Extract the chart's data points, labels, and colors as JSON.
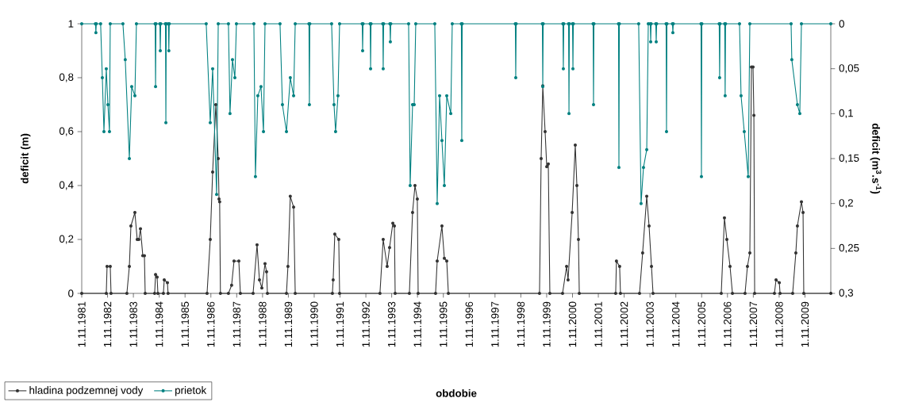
{
  "chart_data": {
    "type": "line",
    "xlabel": "obdobie",
    "ylabel": "deficit (m)",
    "y2label": "deficit (m$^{3}$.s$^{-1}$)",
    "xlim": [
      "1981-11-01",
      "2010-11-01"
    ],
    "xticks": [
      {
        "value": "1981-11-01",
        "label": "1.11.1981"
      },
      {
        "value": "1982-11-01",
        "label": "1.11.1982"
      },
      {
        "value": "1983-11-01",
        "label": "1.11.1983"
      },
      {
        "value": "1984-11-01",
        "label": "1.11.1984"
      },
      {
        "value": "1985-11-01",
        "label": "1.11.1985"
      },
      {
        "value": "1986-11-01",
        "label": "1.11.1986"
      },
      {
        "value": "1987-11-01",
        "label": "1.11.1987"
      },
      {
        "value": "1988-11-01",
        "label": "1.11.1988"
      },
      {
        "value": "1989-11-01",
        "label": "1.11.1989"
      },
      {
        "value": "1990-11-01",
        "label": "1.11.1990"
      },
      {
        "value": "1991-11-01",
        "label": "1.11.1991"
      },
      {
        "value": "1992-11-01",
        "label": "1.11.1992"
      },
      {
        "value": "1993-11-01",
        "label": "1.11.1993"
      },
      {
        "value": "1994-11-01",
        "label": "1.11.1994"
      },
      {
        "value": "1995-11-01",
        "label": "1.11.1995"
      },
      {
        "value": "1996-11-01",
        "label": "1.11.1996"
      },
      {
        "value": "1997-11-01",
        "label": "1.11.1997"
      },
      {
        "value": "1998-11-01",
        "label": "1.11.1998"
      },
      {
        "value": "1999-11-01",
        "label": "1.11.1999"
      },
      {
        "value": "2000-11-01",
        "label": "1.11.2000"
      },
      {
        "value": "2001-11-01",
        "label": "1.11.2001"
      },
      {
        "value": "2002-11-01",
        "label": "1.11.2002"
      },
      {
        "value": "2003-11-01",
        "label": "1.11.2003"
      },
      {
        "value": "2004-11-01",
        "label": "1.11.2004"
      },
      {
        "value": "2005-11-01",
        "label": "1.11.2005"
      },
      {
        "value": "2006-11-01",
        "label": "1.11.2006"
      },
      {
        "value": "2007-11-01",
        "label": "1.11.2007"
      },
      {
        "value": "2008-11-01",
        "label": "1.11.2008"
      },
      {
        "value": "2009-11-01",
        "label": "1.11.2009"
      }
    ],
    "ylim": [
      0,
      1
    ],
    "yticks": [
      0,
      {
        "value": 0.2,
        "label": "0,2"
      },
      {
        "value": 0.4,
        "label": "0,4"
      },
      {
        "value": 0.6,
        "label": "0,6"
      },
      {
        "value": 0.8,
        "label": "0,8"
      },
      1
    ],
    "y2lim": [
      0.3,
      0
    ],
    "y2ticks": [
      0,
      {
        "value": 0.05,
        "label": "0,05"
      },
      {
        "value": 0.1,
        "label": "0,1"
      },
      {
        "value": 0.15,
        "label": "0,15"
      },
      {
        "value": 0.2,
        "label": "0,2"
      },
      {
        "value": 0.25,
        "label": "0,25"
      },
      {
        "value": 0.3,
        "label": "0,3"
      }
    ],
    "legend": "bottom left",
    "marker": "circle",
    "line_style": "solid",
    "series": [
      {
        "name": "hladina podzemnej vody",
        "color": "#333333",
        "x": [
          "1981-11-01",
          "1982-10-14",
          "1982-10-25",
          "1982-12-09",
          "1982-12-20",
          "1983-08-01",
          "1983-09-05",
          "1983-09-27",
          "1983-11-22",
          "1983-12-25",
          "1984-01-17",
          "1984-02-09",
          "1984-03-13",
          "1984-04-05",
          "1984-04-16",
          "1984-08-28",
          "1984-09-10",
          "1984-10-02",
          "1984-10-13",
          "1984-12-30",
          "1985-01-11",
          "1985-02-25",
          "1985-03-06",
          "1986-09-08",
          "1986-10-23",
          "1986-11-26",
          "1987-01-10",
          "1987-02-13",
          "1987-02-24",
          "1987-03-05",
          "1987-03-16",
          "1987-07-07",
          "1987-08-21",
          "1987-09-24",
          "1987-12-01",
          "1987-12-23",
          "1988-06-20",
          "1988-08-15",
          "1988-09-18",
          "1988-10-22",
          "1988-12-06",
          "1988-12-28",
          "1989-01-09",
          "1989-10-05",
          "1989-10-26",
          "1989-11-28",
          "1990-01-14",
          "1990-02-06",
          "1991-07-16",
          "1991-07-27",
          "1991-08-19",
          "1991-10-14",
          "1991-10-26",
          "1993-05-19",
          "1993-07-04",
          "1993-08-29",
          "1993-10-02",
          "1993-11-17",
          "1993-12-09",
          "1993-12-20",
          "1994-07-09",
          "1994-08-23",
          "1994-09-26",
          "1994-10-29",
          "1994-11-10",
          "1995-07-14",
          "1995-08-06",
          "1995-10-12",
          "1995-11-15",
          "1995-12-19",
          "1996-01-11",
          "1999-07-23",
          "1999-08-15",
          "1999-09-07",
          "1999-10-10",
          "1999-11-02",
          "1999-11-24",
          "1999-12-16",
          "2000-06-13",
          "2000-08-09",
          "2000-08-30",
          "2000-10-27",
          "2000-12-10",
          "2001-01-02",
          "2001-01-24",
          "2001-02-05",
          "2002-07-04",
          "2002-07-15",
          "2002-08-29",
          "2002-09-10",
          "2003-06-06",
          "2003-07-20",
          "2003-09-16",
          "2003-10-19",
          "2003-11-22",
          "2003-12-14",
          "2006-08-05",
          "2006-09-19",
          "2006-10-23",
          "2006-12-07",
          "2007-01-10",
          "2007-07-07",
          "2007-08-10",
          "2007-09-13",
          "2007-10-06",
          "2007-10-28",
          "2007-11-09",
          "2007-11-20",
          "2008-08-26",
          "2008-09-18",
          "2008-11-03",
          "2008-11-14",
          "2009-05-11",
          "2009-06-25",
          "2009-07-17",
          "2009-09-12",
          "2009-10-05",
          "2009-10-15",
          "2010-11-01"
        ],
        "values": [
          0,
          0,
          0.1,
          0.1,
          0,
          0,
          0.1,
          0.25,
          0.3,
          0.2,
          0.2,
          0.24,
          0.14,
          0.14,
          0,
          0,
          0.07,
          0.06,
          0,
          0,
          0.05,
          0.04,
          0,
          0,
          0.2,
          0.45,
          0.7,
          0.5,
          0.35,
          0.34,
          0,
          0,
          0.03,
          0.12,
          0.12,
          0,
          0,
          0.18,
          0.05,
          0.02,
          0.11,
          0.08,
          0,
          0,
          0.1,
          0.36,
          0.32,
          0,
          0,
          0.05,
          0.22,
          0.2,
          0,
          0,
          0.2,
          0.1,
          0.17,
          0.26,
          0.25,
          0,
          0,
          0.3,
          0.4,
          0.35,
          0,
          0,
          0.12,
          0.25,
          0.13,
          0.12,
          0,
          0,
          0.5,
          0.77,
          0.6,
          0.47,
          0.48,
          0,
          0,
          0.1,
          0.05,
          0.3,
          0.55,
          0.4,
          0.2,
          0,
          0,
          0.12,
          0.1,
          0,
          0,
          0.15,
          0.36,
          0.25,
          0.1,
          0,
          0,
          0.28,
          0.2,
          0.1,
          0,
          0,
          0.1,
          0.15,
          0.84,
          0.84,
          0.66,
          0,
          0,
          0.05,
          0.04,
          0,
          0,
          0.15,
          0.25,
          0.34,
          0.3,
          0,
          0
        ]
      },
      {
        "name": "prietok",
        "color": "#008080",
        "axis": "y2",
        "x": [
          "1981-11-01",
          "1982-05-14",
          "1982-05-20",
          "1982-05-26",
          "1982-07-26",
          "1982-08-19",
          "1982-09-11",
          "1982-10-14",
          "1982-11-06",
          "1982-11-28",
          "1982-12-09",
          "1983-06-06",
          "1983-07-09",
          "1983-09-05",
          "1983-10-08",
          "1983-11-22",
          "1983-12-14",
          "1984-09-04",
          "1984-09-10",
          "1984-09-16",
          "1984-11-10",
          "1984-11-16",
          "1984-11-22",
          "1985-01-28",
          "1985-02-03",
          "1985-02-09",
          "1985-03-11",
          "1985-03-17",
          "1985-03-23",
          "1986-08-27",
          "1986-10-23",
          "1986-11-26",
          "1987-01-21",
          "1987-02-13",
          "1987-07-07",
          "1987-07-29",
          "1987-09-02",
          "1987-10-06",
          "1987-10-28",
          "1988-07-01",
          "1988-07-23",
          "1988-08-26",
          "1988-10-10",
          "1988-11-14",
          "1988-12-06",
          "1989-07-06",
          "1989-08-09",
          "1989-10-05",
          "1989-11-28",
          "1990-01-14",
          "1990-02-06",
          "1990-08-19",
          "1990-08-25",
          "1990-08-31",
          "1991-07-05",
          "1991-08-08",
          "1991-08-30",
          "1991-10-03",
          "1991-10-26",
          "1992-09-10",
          "1992-09-16",
          "1992-09-22",
          "1993-01-01",
          "1993-01-07",
          "1993-01-13",
          "1993-06-28",
          "1993-07-04",
          "1993-07-10",
          "1993-10-07",
          "1993-10-13",
          "1993-10-19",
          "1994-06-28",
          "1994-07-20",
          "1994-08-23",
          "1994-09-15",
          "1994-10-07",
          "1995-07-03",
          "1995-08-06",
          "1995-09-09",
          "1995-10-12",
          "1995-11-15",
          "1995-12-19",
          "1996-02-14",
          "1996-03-06",
          "1996-07-13",
          "1996-07-19",
          "1996-07-25",
          "1998-08-15",
          "1998-08-21",
          "1998-08-27",
          "1999-09-01",
          "1999-09-07",
          "1999-09-13",
          "2000-06-18",
          "2000-06-24",
          "2000-06-30",
          "2000-09-06",
          "2000-09-12",
          "2000-09-18",
          "2000-11-01",
          "2000-11-07",
          "2000-11-13",
          "2001-08-19",
          "2001-08-25",
          "2001-08-31",
          "2002-08-13",
          "2002-08-19",
          "2002-08-25",
          "2003-05-25",
          "2003-06-28",
          "2003-08-01",
          "2003-09-16",
          "2003-10-08",
          "2003-11-05",
          "2003-11-11",
          "2003-11-17",
          "2004-01-22",
          "2004-01-28",
          "2004-02-03",
          "2004-06-16",
          "2004-06-22",
          "2004-06-28",
          "2004-09-14",
          "2004-09-20",
          "2004-09-26",
          "2005-10-23",
          "2005-10-29",
          "2005-11-04",
          "2006-07-07",
          "2006-07-13",
          "2006-07-19",
          "2006-09-23",
          "2006-09-29",
          "2006-10-05",
          "2007-04-20",
          "2007-05-12",
          "2007-06-26",
          "2007-08-21",
          "2007-09-13",
          "2009-04-19",
          "2009-04-29",
          "2009-07-17",
          "2009-08-20",
          "2009-09-12",
          "2010-11-01"
        ],
        "values": [
          0,
          0,
          0.01,
          0,
          0,
          0.06,
          0.12,
          0.05,
          0.09,
          0.12,
          0,
          0,
          0.04,
          0.15,
          0.07,
          0.08,
          0,
          0,
          0.07,
          0,
          0,
          0.03,
          0,
          0,
          0.11,
          0,
          0,
          0.03,
          0,
          0,
          0.11,
          0.05,
          0.19,
          0,
          0,
          0.1,
          0.04,
          0.06,
          0,
          0,
          0.17,
          0.08,
          0.07,
          0.12,
          0,
          0,
          0.09,
          0.12,
          0.06,
          0.08,
          0,
          0,
          0.09,
          0,
          0,
          0.09,
          0.12,
          0.08,
          0,
          0,
          0.03,
          0,
          0,
          0.05,
          0,
          0,
          0.05,
          0,
          0,
          0.02,
          0,
          0,
          0.18,
          0.09,
          0.09,
          0,
          0,
          0.2,
          0.08,
          0.13,
          0.18,
          0.08,
          0.1,
          0,
          0,
          0.13,
          0,
          0,
          0.06,
          0,
          0,
          0.07,
          0,
          0,
          0.05,
          0,
          0,
          0.1,
          0,
          0,
          0.05,
          0,
          0,
          0.09,
          0,
          0,
          0.16,
          0,
          0,
          0.2,
          0.16,
          0.14,
          0,
          0,
          0.02,
          0,
          0,
          0.02,
          0,
          0,
          0.12,
          0,
          0,
          0.01,
          0,
          0,
          0.17,
          0,
          0,
          0.06,
          0,
          0,
          0.08,
          0,
          0,
          0.08,
          0.12,
          0.17,
          0,
          0,
          0.04,
          0.09,
          0.1,
          0,
          0
        ]
      }
    ]
  }
}
